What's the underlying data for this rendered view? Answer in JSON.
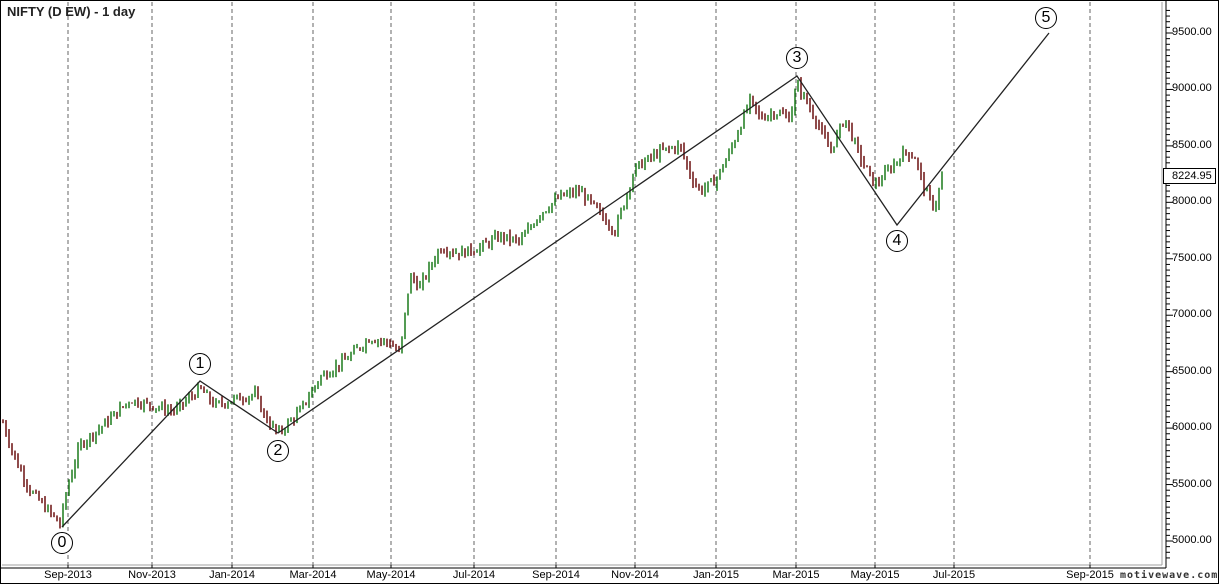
{
  "chart_data": {
    "type": "ohlc",
    "title": "NIFTY (D EW) - 1 day",
    "xlabel": "",
    "ylabel": "",
    "ylim": [
      4800,
      9750
    ],
    "y_ticks": [
      5000,
      5500,
      6000,
      6500,
      7000,
      7500,
      8000,
      8500,
      9000,
      9500
    ],
    "y_tick_labels": [
      "5000.00",
      "5500.00",
      "6000.00",
      "6500.00",
      "7000.00",
      "7500.00",
      "8000.00",
      "8500.00",
      "9000.00",
      "9500.00"
    ],
    "x_tick_labels": [
      "Sep-2013",
      "Nov-2013",
      "Jan-2014",
      "Mar-2014",
      "May-2014",
      "Jul-2014",
      "Sep-2014",
      "Nov-2014",
      "Jan-2015",
      "Mar-2015",
      "May-2015",
      "Jul-2015",
      "Sep-2015"
    ],
    "grid": {
      "vertical": "dashed",
      "horizontal": "none"
    },
    "last_price": "8224.95",
    "up_color": "#1a7a1a",
    "down_color": "#6b0f0f",
    "elliott_wave": {
      "labels": [
        "0",
        "1",
        "2",
        "3",
        "4",
        "5"
      ],
      "points": [
        {
          "label": "0",
          "date": "Aug-2013",
          "price": 5120
        },
        {
          "label": "1",
          "date": "Dec-2013",
          "price": 6415
        },
        {
          "label": "2",
          "date": "Feb-2014",
          "price": 5935
        },
        {
          "label": "3",
          "date": "Mar-2015",
          "price": 9120
        },
        {
          "label": "4",
          "date": "Jun-2015",
          "price": 7800
        },
        {
          "label": "5",
          "date": "Aug-2015",
          "price": 9500
        }
      ]
    },
    "approx_series": [
      {
        "x": "Jul-2013",
        "price": 6050
      },
      {
        "x": "Aug-2013",
        "price": 5450
      },
      {
        "x": "Aug-2013",
        "price": 5120
      },
      {
        "x": "Sep-2013",
        "price": 5900
      },
      {
        "x": "Oct-2013",
        "price": 6150
      },
      {
        "x": "Nov-2013",
        "price": 6250
      },
      {
        "x": "Dec-2013",
        "price": 6350
      },
      {
        "x": "Jan-2014",
        "price": 6250
      },
      {
        "x": "Feb-2014",
        "price": 6000
      },
      {
        "x": "Mar-2014",
        "price": 6500
      },
      {
        "x": "Apr-2014",
        "price": 6750
      },
      {
        "x": "May-2014",
        "price": 7300
      },
      {
        "x": "Jun-2014",
        "price": 7600
      },
      {
        "x": "Jul-2014",
        "price": 7750
      },
      {
        "x": "Aug-2014",
        "price": 7900
      },
      {
        "x": "Sep-2014",
        "price": 8050
      },
      {
        "x": "Oct-2014",
        "price": 8000
      },
      {
        "x": "Nov-2014",
        "price": 8500
      },
      {
        "x": "Dec-2014",
        "price": 8200
      },
      {
        "x": "Jan-2015",
        "price": 8800
      },
      {
        "x": "Feb-2015",
        "price": 8850
      },
      {
        "x": "Mar-2015",
        "price": 8500
      },
      {
        "x": "Apr-2015",
        "price": 8350
      },
      {
        "x": "May-2015",
        "price": 8400
      },
      {
        "x": "Jun-2015",
        "price": 8000
      },
      {
        "x": "Jun-2015",
        "price": 8225
      }
    ]
  },
  "header": {
    "title": "NIFTY (D EW) - 1 day"
  },
  "axis": {
    "price_tag": "8224.95",
    "watermark": "motivewave.com"
  }
}
